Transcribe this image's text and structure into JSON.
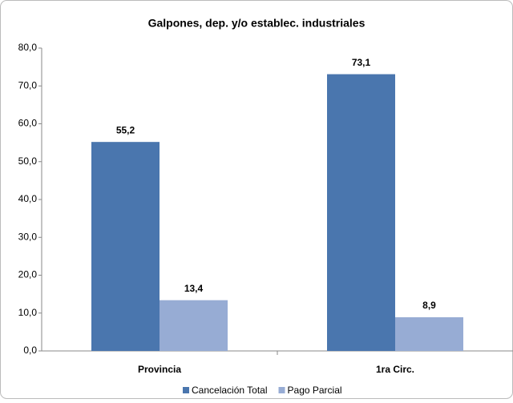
{
  "chart_data": {
    "type": "bar",
    "title": "Galpones, dep. y/o establec. industriales",
    "categories": [
      "Provincia",
      "1ra Circ."
    ],
    "series": [
      {
        "name": "Cancelación Total",
        "color": "#4a76ae",
        "values": [
          55.2,
          73.1
        ],
        "value_labels": [
          "55,2",
          "73,1"
        ]
      },
      {
        "name": "Pago Parcial",
        "color": "#97acd4",
        "values": [
          13.4,
          8.9
        ],
        "value_labels": [
          "13,4",
          "8,9"
        ]
      }
    ],
    "ylim": [
      0,
      80
    ],
    "yticks": [
      {
        "value": 0,
        "label": "0,0"
      },
      {
        "value": 10,
        "label": "10,0"
      },
      {
        "value": 20,
        "label": "20,0"
      },
      {
        "value": 30,
        "label": "30,0"
      },
      {
        "value": 40,
        "label": "40,0"
      },
      {
        "value": 50,
        "label": "50,0"
      },
      {
        "value": 60,
        "label": "60,0"
      },
      {
        "value": 70,
        "label": "70,0"
      },
      {
        "value": 80,
        "label": "80,0"
      }
    ],
    "grid": false,
    "legend": "bottom"
  }
}
